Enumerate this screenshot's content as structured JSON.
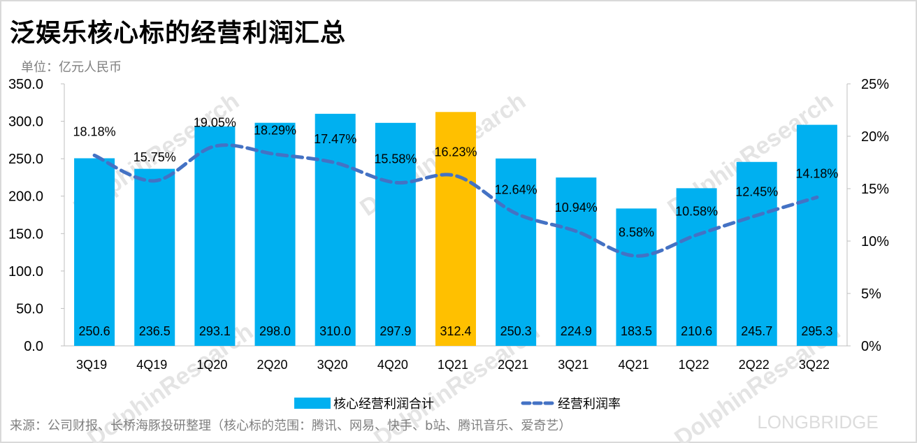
{
  "title": "泛娱乐核心标的经营利润汇总",
  "unit_label": "单位：亿元人民币",
  "source": "来源：公司财报、长桥海豚投研整理（核心标的范围：腾讯、网易、快手、b站、腾讯音乐、爱奇艺）",
  "watermarks": [
    "DolphinResearch",
    "LONGBRIDGE"
  ],
  "chart_data": {
    "type": "bar+line",
    "title": "泛娱乐核心标的经营利润汇总",
    "categories": [
      "3Q19",
      "4Q19",
      "1Q20",
      "2Q20",
      "3Q20",
      "4Q20",
      "1Q21",
      "2Q21",
      "3Q21",
      "4Q21",
      "1Q22",
      "2Q22",
      "3Q22"
    ],
    "series": [
      {
        "name": "核心经营利润合计",
        "type": "bar",
        "axis": "left",
        "color": "#00B0F0",
        "highlight_color": "#FFC000",
        "highlight_index": 6,
        "values": [
          250.6,
          236.5,
          293.1,
          298.0,
          310.0,
          297.9,
          312.4,
          250.3,
          224.9,
          183.5,
          210.6,
          245.7,
          295.3
        ],
        "labels": [
          "250.6",
          "236.5",
          "293.1",
          "298.0",
          "310.0",
          "297.9",
          "312.4",
          "250.3",
          "224.9",
          "183.5",
          "210.6",
          "245.7",
          "295.3"
        ]
      },
      {
        "name": "经营利润率",
        "type": "line",
        "style": "dashed",
        "axis": "right",
        "color": "#4472C4",
        "values": [
          18.18,
          15.75,
          19.05,
          18.29,
          17.47,
          15.58,
          16.23,
          12.64,
          10.94,
          8.58,
          10.58,
          12.45,
          14.18
        ],
        "labels": [
          "18.18%",
          "15.75%",
          "19.05%",
          "18.29%",
          "17.47%",
          "15.58%",
          "16.23%",
          "12.64%",
          "10.94%",
          "8.58%",
          "10.58%",
          "12.45%",
          "14.18%"
        ]
      }
    ],
    "y_left": {
      "range": [
        0,
        350
      ],
      "ticks": [
        "0.0",
        "50.0",
        "100.0",
        "150.0",
        "200.0",
        "250.0",
        "300.0",
        "350.0"
      ]
    },
    "y_right": {
      "range": [
        0,
        25
      ],
      "ticks": [
        "0%",
        "5%",
        "10%",
        "15%",
        "20%",
        "25%"
      ]
    },
    "grid": false,
    "legend_position": "bottom"
  }
}
